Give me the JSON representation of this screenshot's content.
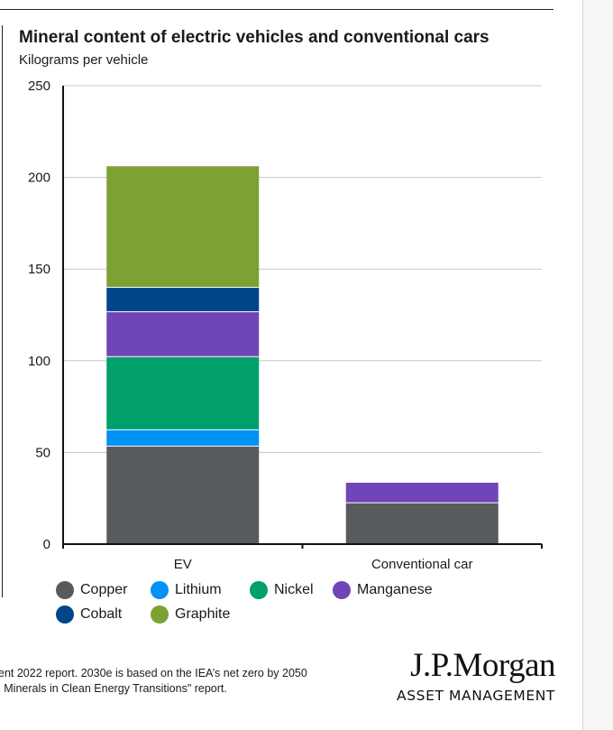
{
  "chart_data": {
    "type": "bar",
    "stacked": true,
    "title": "Mineral content of electric vehicles and conventional cars",
    "subtitle": "Kilograms per vehicle",
    "xlabel": "",
    "ylabel": "Kilograms per vehicle",
    "ylim": [
      0,
      250
    ],
    "yticks": [
      0,
      50,
      100,
      150,
      200,
      250
    ],
    "grid": true,
    "categories": [
      "EV",
      "Conventional car"
    ],
    "series": [
      {
        "name": "Copper",
        "color": "#585b5e",
        "values": [
          53.2,
          22.3
        ]
      },
      {
        "name": "Lithium",
        "color": "#0092f4",
        "values": [
          8.9,
          0
        ]
      },
      {
        "name": "Nickel",
        "color": "#009f6b",
        "values": [
          39.9,
          0
        ]
      },
      {
        "name": "Manganese",
        "color": "#7045b8",
        "values": [
          24.5,
          11.2
        ]
      },
      {
        "name": "Cobalt",
        "color": "#00458a",
        "values": [
          13.3,
          0
        ]
      },
      {
        "name": "Graphite",
        "color": "#7da233",
        "values": [
          66.3,
          0
        ]
      }
    ],
    "legend_position": "bottom"
  },
  "legend": {
    "rows": [
      [
        "Copper",
        "Lithium",
        "Nickel",
        "Manganese"
      ],
      [
        "Cobalt",
        "Graphite"
      ]
    ]
  },
  "footnote": {
    "line1": "ent 2022 report. 2030e is based on the IEA’s net zero by 2050",
    "line2": "l Minerals in Clean Energy Transitions\" report."
  },
  "logo": {
    "main": "J.P.Morgan",
    "sub": "ASSET MANAGEMENT"
  }
}
